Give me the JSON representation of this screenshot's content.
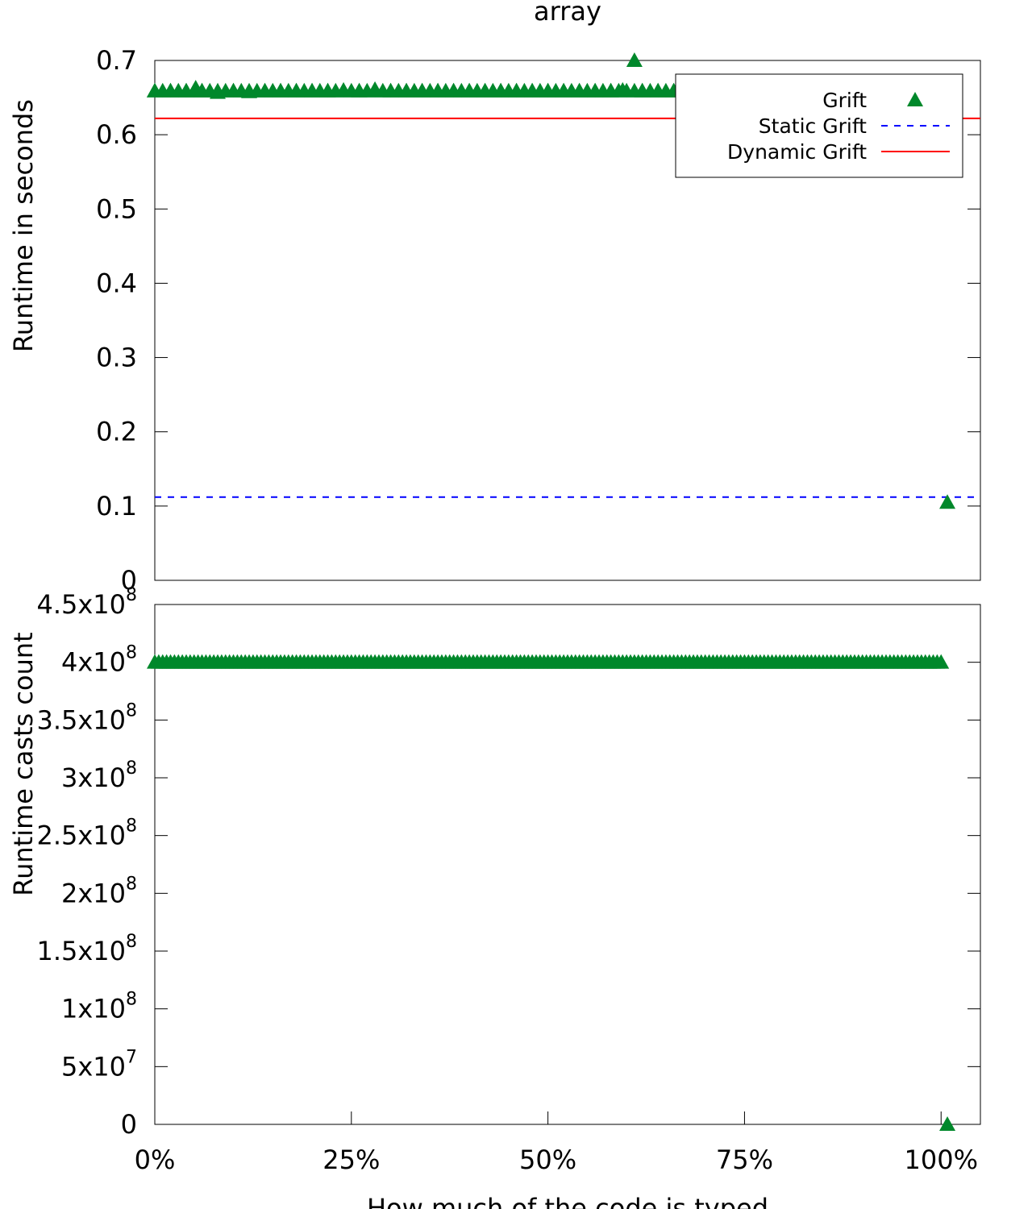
{
  "chart_data": [
    {
      "type": "scatter",
      "title": "array",
      "xlabel": "",
      "ylabel": "Runtime in seconds",
      "xlim": [
        0,
        105
      ],
      "ylim": [
        0,
        0.7
      ],
      "yticks": [
        "0",
        "0.1",
        "0.2",
        "0.3",
        "0.4",
        "0.5",
        "0.6",
        "0.7"
      ],
      "legend_position": "top-right",
      "colors": {
        "grift": "#00882b",
        "static": "#0000ff",
        "dynamic": "#ff0000"
      },
      "series": [
        {
          "name": "Grift",
          "type": "scatter",
          "marker": "triangle",
          "x": [
            0,
            2,
            4,
            5.2,
            6,
            8,
            10,
            12,
            14,
            16,
            18,
            20,
            22,
            24,
            26,
            28,
            30,
            32,
            34,
            36,
            38,
            40,
            42,
            44,
            46,
            48,
            50,
            52,
            54,
            56,
            58,
            59.5,
            61,
            62,
            64,
            66,
            100.8
          ],
          "y": [
            0.659,
            0.659,
            0.659,
            0.663,
            0.659,
            0.657,
            0.659,
            0.658,
            0.659,
            0.659,
            0.659,
            0.659,
            0.659,
            0.66,
            0.659,
            0.661,
            0.659,
            0.659,
            0.659,
            0.659,
            0.659,
            0.659,
            0.659,
            0.659,
            0.659,
            0.659,
            0.659,
            0.659,
            0.659,
            0.659,
            0.659,
            0.66,
            0.7,
            0.659,
            0.659,
            0.659,
            0.105
          ]
        },
        {
          "name": "Static Grift",
          "type": "hline",
          "style": "dashed",
          "y": 0.112
        },
        {
          "name": "Dynamic Grift",
          "type": "hline",
          "style": "solid",
          "y": 0.622
        }
      ]
    },
    {
      "type": "scatter",
      "title": "",
      "xlabel": "How much of the code is typed",
      "ylabel": "Runtime casts count",
      "xlim": [
        0,
        105
      ],
      "ylim": [
        0,
        450000000
      ],
      "xticks": [
        "0%",
        "25%",
        "50%",
        "75%",
        "100%"
      ],
      "yticks": [
        {
          "base": "0",
          "exp": ""
        },
        {
          "base": "5x10",
          "exp": "7"
        },
        {
          "base": "1x10",
          "exp": "8"
        },
        {
          "base": "1.5x10",
          "exp": "8"
        },
        {
          "base": "2x10",
          "exp": "8"
        },
        {
          "base": "2.5x10",
          "exp": "8"
        },
        {
          "base": "3x10",
          "exp": "8"
        },
        {
          "base": "3.5x10",
          "exp": "8"
        },
        {
          "base": "4x10",
          "exp": "8"
        },
        {
          "base": "4.5x10",
          "exp": "8"
        }
      ],
      "colors": {
        "grift": "#00882b"
      },
      "series": [
        {
          "name": "Grift",
          "type": "scatter",
          "marker": "triangle",
          "x_range": [
            0,
            100
          ],
          "y_const": 400000000,
          "extra": [
            {
              "x": 100.8,
              "y": 0
            }
          ]
        }
      ]
    }
  ]
}
